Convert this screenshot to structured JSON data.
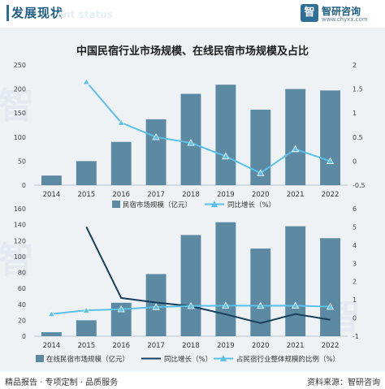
{
  "header": {
    "title": "发展现状",
    "ghost_text": "ent status"
  },
  "brand": {
    "logo": "智",
    "name": "智研咨询",
    "url": "www.chyxx.com"
  },
  "footer": {
    "left": "精品报告 · 专项定制 · 品质服务",
    "right": "资料来源：智研咨询"
  },
  "page_title": "中国民宿行业市场规模、在线民宿市场规模及占比",
  "colors": {
    "bar": "#5c8aa3",
    "line_top": "#5bc0e8",
    "line_dark": "#173f5b",
    "line_light": "#5bc0e8",
    "header": "#1e5d84"
  },
  "chart_data": [
    {
      "type": "bar",
      "categories": [
        "2014",
        "2015",
        "2016",
        "2017",
        "2018",
        "2019",
        "2020",
        "2021",
        "2022"
      ],
      "series": [
        {
          "name": "民宿市场规模（亿元）",
          "axis": "left",
          "values": [
            20,
            50,
            90,
            137,
            190,
            209,
            157,
            200,
            197
          ]
        },
        {
          "name": "同比增长（%）",
          "axis": "right",
          "type": "line",
          "values": [
            null,
            1.65,
            0.8,
            0.5,
            0.38,
            0.1,
            -0.25,
            0.25,
            0
          ]
        }
      ],
      "ylim_left": [
        0,
        250
      ],
      "yticks_left": [
        "0",
        "50",
        "100",
        "150",
        "200",
        "250"
      ],
      "ylim_right": [
        -0.5,
        2
      ],
      "yticks_right": [
        "-0.5",
        "0",
        "0.5",
        "1",
        "1.5",
        "2"
      ],
      "legend_position": "bottom"
    },
    {
      "type": "bar",
      "categories": [
        "2014",
        "2015",
        "2016",
        "2017",
        "2018",
        "2019",
        "2020",
        "2021",
        "2022"
      ],
      "series": [
        {
          "name": "在线民宿市场规模（亿元）",
          "axis": "left",
          "values": [
            5,
            20,
            42,
            78,
            127,
            143,
            110,
            138,
            123
          ]
        },
        {
          "name": "同比增长（%）",
          "axis": "right",
          "type": "line",
          "values": [
            null,
            5,
            1.1,
            0.85,
            0.65,
            0.2,
            -0.28,
            0.22,
            -0.1
          ]
        },
        {
          "name": "占民宿行业整体规模的比例（%）",
          "axis": "right",
          "type": "line",
          "values": [
            0.22,
            0.42,
            0.48,
            0.6,
            0.66,
            0.68,
            0.67,
            0.68,
            0.62
          ]
        }
      ],
      "ylim_left": [
        0,
        160
      ],
      "yticks_left": [
        "0",
        "20",
        "40",
        "60",
        "80",
        "100",
        "120",
        "140",
        "160"
      ],
      "ylim_right": [
        -1,
        6
      ],
      "yticks_right": [
        "-1",
        "0",
        "1",
        "2",
        "3",
        "4",
        "5",
        "6"
      ],
      "legend_position": "bottom"
    }
  ]
}
